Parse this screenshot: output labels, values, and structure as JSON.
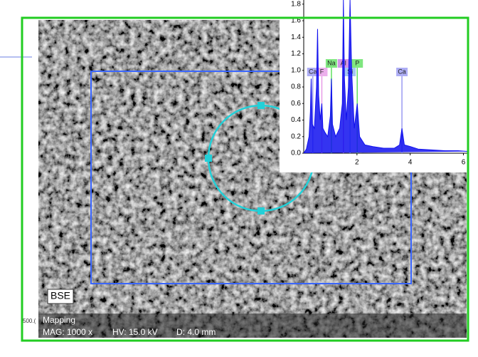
{
  "image": {
    "detector": "BSE",
    "mode": "Mapping",
    "mag": "MAG: 1000 x",
    "hv": "HV: 15.0 kV",
    "distance": "D: 4.0 mm",
    "side_label": "500.("
  },
  "chart_data": {
    "type": "line",
    "x": [
      0.0,
      0.1,
      0.2,
      0.25,
      0.28,
      0.32,
      0.4,
      0.48,
      0.52,
      0.56,
      0.62,
      0.68,
      0.72,
      0.8,
      0.9,
      1.0,
      1.04,
      1.08,
      1.2,
      1.35,
      1.45,
      1.49,
      1.53,
      1.6,
      1.68,
      1.74,
      1.8,
      1.9,
      2.01,
      2.1,
      2.3,
      2.6,
      3.0,
      3.4,
      3.6,
      3.69,
      3.78,
      4.01,
      4.3,
      4.8,
      5.3,
      5.8,
      6.2
    ],
    "series": [
      {
        "color": "#1010ee",
        "values": [
          0,
          0.05,
          0.2,
          0.5,
          0.9,
          0.35,
          0.3,
          0.8,
          1.5,
          0.7,
          0.4,
          0.6,
          0.3,
          0.25,
          0.2,
          0.45,
          0.9,
          0.35,
          0.2,
          0.3,
          0.6,
          1.85,
          0.9,
          0.4,
          0.8,
          1.85,
          1.0,
          0.3,
          0.6,
          0.2,
          0.1,
          0.08,
          0.06,
          0.06,
          0.1,
          0.3,
          0.1,
          0.08,
          0.05,
          0.04,
          0.03,
          0.03,
          0.02
        ]
      }
    ],
    "xlim": [
      0,
      6.2
    ],
    "ylim": [
      0,
      1.85
    ],
    "xticks": [
      2,
      4,
      6
    ],
    "yticks": [
      {
        "value": 0,
        "label": "0.0"
      },
      {
        "value": 0.2,
        "label": "0.2"
      },
      {
        "value": 0.4,
        "label": "0.4"
      },
      {
        "value": 0.6,
        "label": "0.6"
      },
      {
        "value": 0.8,
        "label": "0.8"
      },
      {
        "value": 1.0,
        "label": "1.0"
      },
      {
        "value": 1.2,
        "label": "1.2"
      },
      {
        "value": 1.4,
        "label": "1.4"
      },
      {
        "value": 1.6,
        "label": "1.6"
      },
      {
        "value": 1.8,
        "label": "1.8"
      }
    ],
    "annotations": [
      {
        "text": "Ca",
        "x": 0.34,
        "color": "#9a9af2"
      },
      {
        "text": "F",
        "x": 0.68,
        "color": "#e79be7"
      },
      {
        "text": "Na",
        "x": 1.04,
        "color": "#5fe05f"
      },
      {
        "text": "Al",
        "x": 1.49,
        "color": "#c77be0"
      },
      {
        "text": "Si",
        "x": 1.74,
        "color": "#8fb8f0"
      },
      {
        "text": "P",
        "x": 2.01,
        "color": "#5fe05f"
      },
      {
        "text": "Ca",
        "x": 3.69,
        "color": "#9a9af2"
      }
    ]
  }
}
